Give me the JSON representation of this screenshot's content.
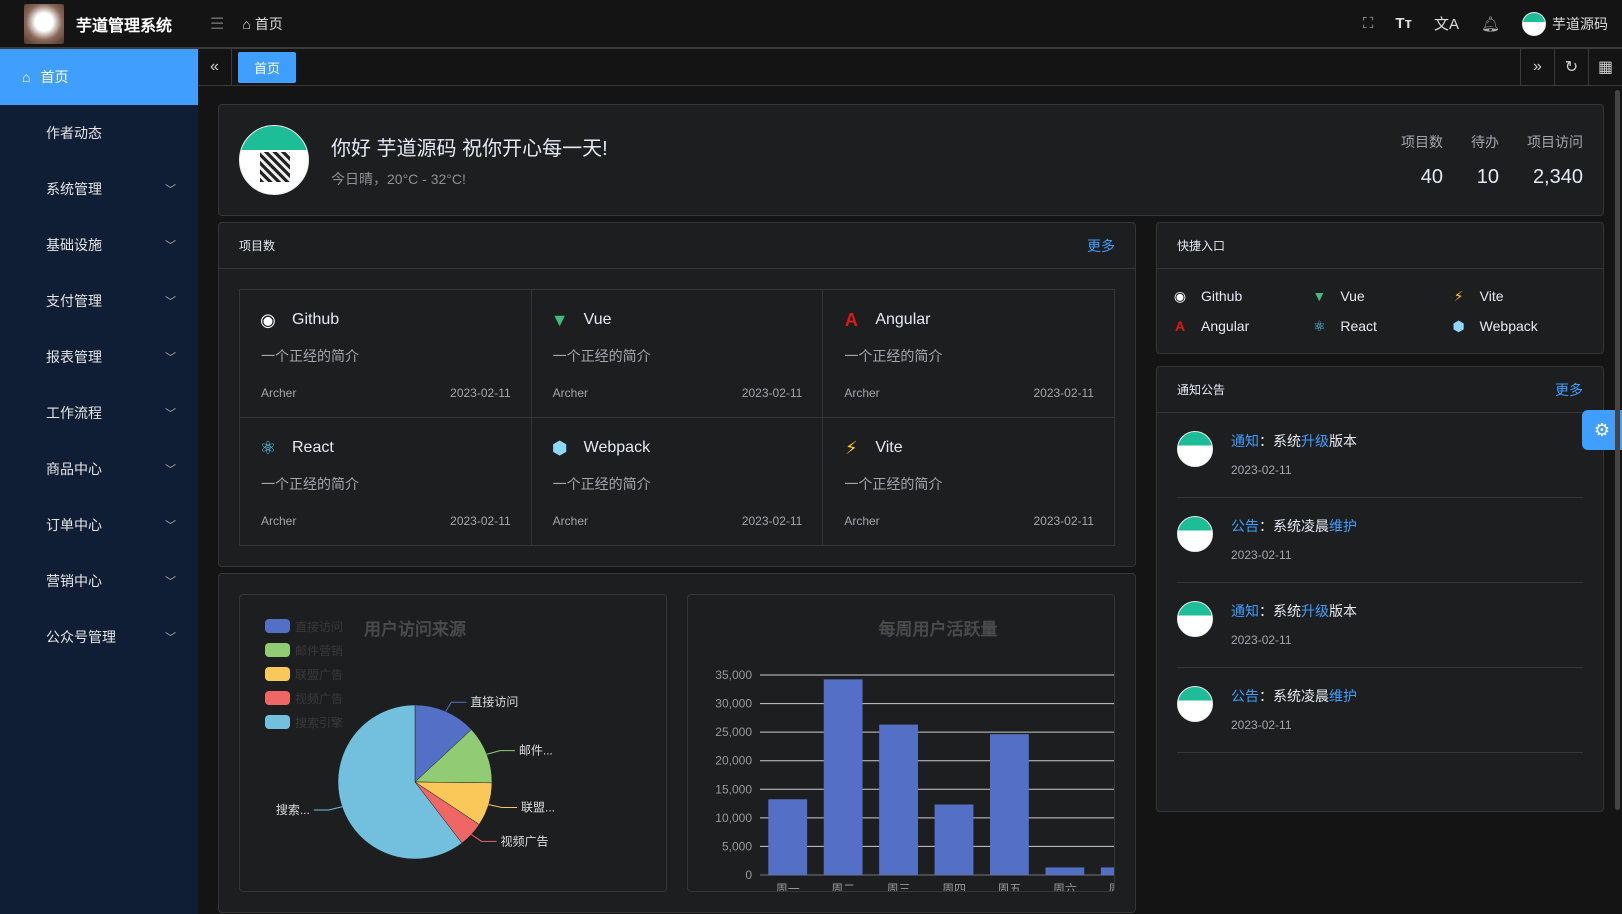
{
  "app": {
    "title": "芋道管理系统",
    "breadcrumb": "首页",
    "user": "芋道源码"
  },
  "header_icons": [
    "fullscreen-icon",
    "font-size-icon",
    "translate-icon",
    "bell-icon"
  ],
  "sidebar": {
    "items": [
      {
        "label": "首页",
        "active": true
      },
      {
        "label": "作者动态"
      },
      {
        "label": "系统管理",
        "expandable": true
      },
      {
        "label": "基础设施",
        "expandable": true
      },
      {
        "label": "支付管理",
        "expandable": true
      },
      {
        "label": "报表管理",
        "expandable": true
      },
      {
        "label": "工作流程",
        "expandable": true
      },
      {
        "label": "商品中心",
        "expandable": true
      },
      {
        "label": "订单中心",
        "expandable": true
      },
      {
        "label": "营销中心",
        "expandable": true
      },
      {
        "label": "公众号管理",
        "expandable": true
      }
    ]
  },
  "tabs": [
    {
      "label": "首页",
      "active": true
    }
  ],
  "welcome": {
    "greeting": "你好 芋道源码 祝你开心每一天!",
    "weather": "今日晴，20°C - 32°C!",
    "stats": [
      {
        "label": "项目数",
        "value": "40"
      },
      {
        "label": "待办",
        "value": "10"
      },
      {
        "label": "项目访问",
        "value": "2,340"
      }
    ]
  },
  "projects": {
    "title": "项目数",
    "more": "更多",
    "items": [
      {
        "name": "Github",
        "desc": "一个正经的简介",
        "author": "Archer",
        "date": "2023-02-11",
        "icon": "github-icon",
        "color": "#ffffff"
      },
      {
        "name": "Vue",
        "desc": "一个正经的简介",
        "author": "Archer",
        "date": "2023-02-11",
        "icon": "vue-icon",
        "color": "#42b883"
      },
      {
        "name": "Angular",
        "desc": "一个正经的简介",
        "author": "Archer",
        "date": "2023-02-11",
        "icon": "angular-icon",
        "color": "#dd1b16"
      },
      {
        "name": "React",
        "desc": "一个正经的简介",
        "author": "Archer",
        "date": "2023-02-11",
        "icon": "react-icon",
        "color": "#61dafb"
      },
      {
        "name": "Webpack",
        "desc": "一个正经的简介",
        "author": "Archer",
        "date": "2023-02-11",
        "icon": "webpack-icon",
        "color": "#8ed6fb"
      },
      {
        "name": "Vite",
        "desc": "一个正经的简介",
        "author": "Archer",
        "date": "2023-02-11",
        "icon": "vite-icon",
        "color": "#ffc517"
      }
    ]
  },
  "quick": {
    "title": "快捷入口",
    "items": [
      {
        "name": "Github",
        "color": "#ffffff"
      },
      {
        "name": "Vue",
        "color": "#42b883"
      },
      {
        "name": "Vite",
        "color": "#ffc517"
      },
      {
        "name": "Angular",
        "color": "#dd1b16"
      },
      {
        "name": "React",
        "color": "#61dafb"
      },
      {
        "name": "Webpack",
        "color": "#8ed6fb"
      }
    ]
  },
  "notice": {
    "title": "通知公告",
    "more": "更多",
    "items": [
      {
        "type": "通知",
        "pre": "：系统",
        "hl": "升级",
        "post": "版本",
        "date": "2023-02-11"
      },
      {
        "type": "公告",
        "pre": "：系统凌晨",
        "hl": "维护",
        "post": "",
        "date": "2023-02-11"
      },
      {
        "type": "通知",
        "pre": "：系统",
        "hl": "升级",
        "post": "版本",
        "date": "2023-02-11"
      },
      {
        "type": "公告",
        "pre": "：系统凌晨",
        "hl": "维护",
        "post": "",
        "date": "2023-02-11"
      }
    ]
  },
  "chart_data": [
    {
      "type": "pie",
      "title": "用户访问来源",
      "legend": "top-left",
      "categories": [
        "直接访问",
        "邮件营销",
        "联盟广告",
        "视频广告",
        "搜索引擎"
      ],
      "values": [
        335,
        310,
        234,
        135,
        1548
      ],
      "slice_labels": [
        "直接访问",
        "邮件...",
        "联盟...",
        "视频广告",
        "搜索..."
      ],
      "colors": [
        "#5470c6",
        "#91cc75",
        "#fac858",
        "#ee6666",
        "#73c0de"
      ]
    },
    {
      "type": "bar",
      "title": "每周用户活跃量",
      "categories": [
        "周一",
        "周二",
        "周三",
        "周四",
        "周五",
        "周六",
        "周日"
      ],
      "values": [
        13253,
        34235,
        26321,
        12340,
        24643,
        1322,
        1324
      ],
      "ylim": [
        0,
        35000
      ],
      "yticks": [
        "0",
        "5,000",
        "10,000",
        "15,000",
        "20,000",
        "25,000",
        "30,000",
        "35,000"
      ],
      "grid": true,
      "color": "#5470c6"
    }
  ]
}
